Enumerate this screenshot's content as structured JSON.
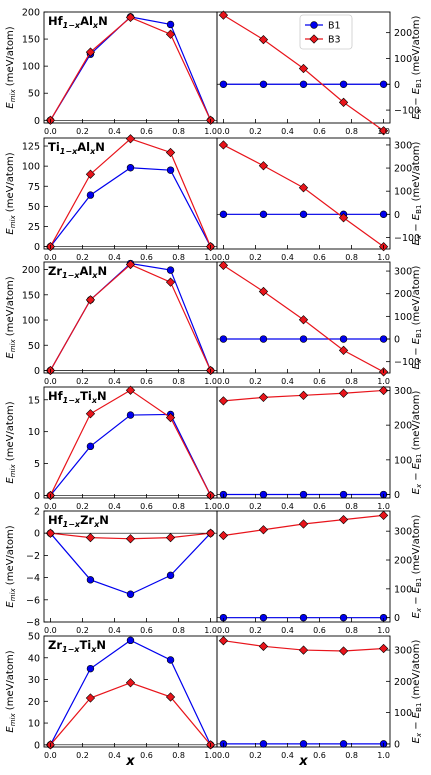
{
  "figure": {
    "x_label": "x",
    "left_ylabel_text": "(meV/atom)",
    "right_ylabel_text": "(meV/atom)",
    "legend": [
      {
        "name": "B1",
        "color": "#0000ee",
        "marker": "circle"
      },
      {
        "name": "B3",
        "color": "#e8141b",
        "marker": "diamond"
      }
    ],
    "colors": {
      "B1": "#0000ee",
      "B3": "#e8141b",
      "zero_line": "#000000"
    }
  },
  "chart_data": [
    {
      "type": "line",
      "title_parts": {
        "a": "Hf",
        "sa": "1−x",
        "b": "Al",
        "sb": "x",
        "c": "N"
      },
      "x": [
        0,
        0.25,
        0.5,
        0.75,
        1.0
      ],
      "left": {
        "ylim": [
          -5,
          200
        ],
        "yticks": [
          0,
          50,
          100,
          150,
          200
        ],
        "series": [
          {
            "name": "B1",
            "values": [
              0,
              122,
              191,
              177,
              0
            ]
          },
          {
            "name": "B3",
            "values": [
              0,
              126,
              190,
              159,
              0
            ]
          }
        ]
      },
      "right": {
        "ylim": [
          -150,
          280
        ],
        "yticks": [
          -100,
          0,
          100,
          200
        ],
        "series": [
          {
            "name": "B1",
            "values": [
              0,
              0,
              0,
              0,
              0
            ]
          },
          {
            "name": "B3",
            "values": [
              268,
              173,
              61,
              -70,
              -180
            ]
          }
        ]
      }
    },
    {
      "type": "line",
      "title_parts": {
        "a": "Ti",
        "sa": "1−x",
        "b": "Al",
        "sb": "x",
        "c": "N"
      },
      "x": [
        0,
        0.25,
        0.5,
        0.75,
        1.0
      ],
      "left": {
        "ylim": [
          -3,
          135
        ],
        "yticks": [
          0,
          25,
          50,
          75,
          100,
          125
        ],
        "series": [
          {
            "name": "B1",
            "values": [
              0,
              64,
              98,
              95,
              0
            ]
          },
          {
            "name": "B3",
            "values": [
              0,
              90,
              134,
              117,
              0
            ]
          }
        ]
      },
      "right": {
        "ylim": [
          -150,
          330
        ],
        "yticks": [
          -100,
          0,
          100,
          200,
          300
        ],
        "series": [
          {
            "name": "B1",
            "values": [
              0,
              0,
              0,
              0,
              0
            ]
          },
          {
            "name": "B3",
            "values": [
              300,
              210,
              115,
              -15,
              -140
            ]
          }
        ]
      }
    },
    {
      "type": "line",
      "title_parts": {
        "a": "Zr",
        "sa": "1−x",
        "b": "Al",
        "sb": "x",
        "c": "N"
      },
      "x": [
        0,
        0.25,
        0.5,
        0.75,
        1.0
      ],
      "left": {
        "ylim": [
          -5,
          215
        ],
        "yticks": [
          0,
          50,
          100,
          150,
          200
        ],
        "series": [
          {
            "name": "B1",
            "values": [
              0,
              140,
              212,
              199,
              0
            ]
          },
          {
            "name": "B3",
            "values": [
              0,
              140,
              210,
              175,
              0
            ]
          }
        ]
      },
      "right": {
        "ylim": [
          -150,
          340
        ],
        "yticks": [
          -100,
          0,
          100,
          200,
          300
        ],
        "series": [
          {
            "name": "B1",
            "values": [
              0,
              0,
              0,
              0,
              0
            ]
          },
          {
            "name": "B3",
            "values": [
              325,
              210,
              85,
              -50,
              -145
            ]
          }
        ]
      }
    },
    {
      "type": "line",
      "title_parts": {
        "a": "Hf",
        "sa": "1−x",
        "b": "Ti",
        "sb": "x",
        "c": "N"
      },
      "x": [
        0,
        0.25,
        0.5,
        0.75,
        1.0
      ],
      "left": {
        "ylim": [
          -0.4,
          17
        ],
        "yticks": [
          0,
          5,
          10,
          15
        ],
        "series": [
          {
            "name": "B1",
            "values": [
              0,
              7.7,
              12.6,
              12.7,
              0
            ]
          },
          {
            "name": "B3",
            "values": [
              0,
              12.8,
              16.5,
              12.2,
              0
            ]
          }
        ]
      },
      "right": {
        "ylim": [
          -10,
          310
        ],
        "yticks": [
          0,
          100,
          200,
          300
        ],
        "series": [
          {
            "name": "B1",
            "values": [
              0,
              0,
              0,
              0,
              0
            ]
          },
          {
            "name": "B3",
            "values": [
              270,
              280,
              286,
              292,
              300
            ]
          }
        ]
      }
    },
    {
      "type": "line",
      "title_parts": {
        "a": "Hf",
        "sa": "1−x",
        "b": "Zr",
        "sb": "x",
        "c": "N"
      },
      "x": [
        0,
        0.25,
        0.5,
        0.75,
        1.0
      ],
      "left": {
        "ylim": [
          -8,
          2
        ],
        "yticks": [
          -8,
          -6,
          -4,
          -2,
          0,
          2
        ],
        "series": [
          {
            "name": "B1",
            "values": [
              0,
              -4.2,
              -5.5,
              -3.8,
              0
            ]
          },
          {
            "name": "B3",
            "values": [
              0,
              -0.4,
              -0.5,
              -0.4,
              0
            ]
          }
        ]
      },
      "right": {
        "ylim": [
          -15,
          370
        ],
        "yticks": [
          0,
          100,
          200,
          300
        ],
        "series": [
          {
            "name": "B1",
            "values": [
              0,
              0,
              0,
              0,
              0
            ]
          },
          {
            "name": "B3",
            "values": [
              285,
              305,
              325,
              340,
              355
            ]
          }
        ]
      }
    },
    {
      "type": "line",
      "title_parts": {
        "a": "Zr",
        "sa": "1−x",
        "b": "Ti",
        "sb": "x",
        "c": "N"
      },
      "x": [
        0,
        0.25,
        0.5,
        0.75,
        1.0
      ],
      "left": {
        "ylim": [
          -1,
          50
        ],
        "yticks": [
          0,
          10,
          20,
          30,
          40,
          50
        ],
        "series": [
          {
            "name": "B1",
            "values": [
              0,
              35,
              48,
              39,
              0
            ]
          },
          {
            "name": "B3",
            "values": [
              0,
              21.5,
              28.5,
              22,
              0
            ]
          }
        ]
      },
      "right": {
        "ylim": [
          -10,
          345
        ],
        "yticks": [
          0,
          100,
          200,
          300
        ],
        "series": [
          {
            "name": "B1",
            "values": [
              0,
              0,
              0,
              0,
              0
            ]
          },
          {
            "name": "B3",
            "values": [
              330,
              312,
              300,
              297,
              305
            ]
          }
        ]
      }
    }
  ]
}
